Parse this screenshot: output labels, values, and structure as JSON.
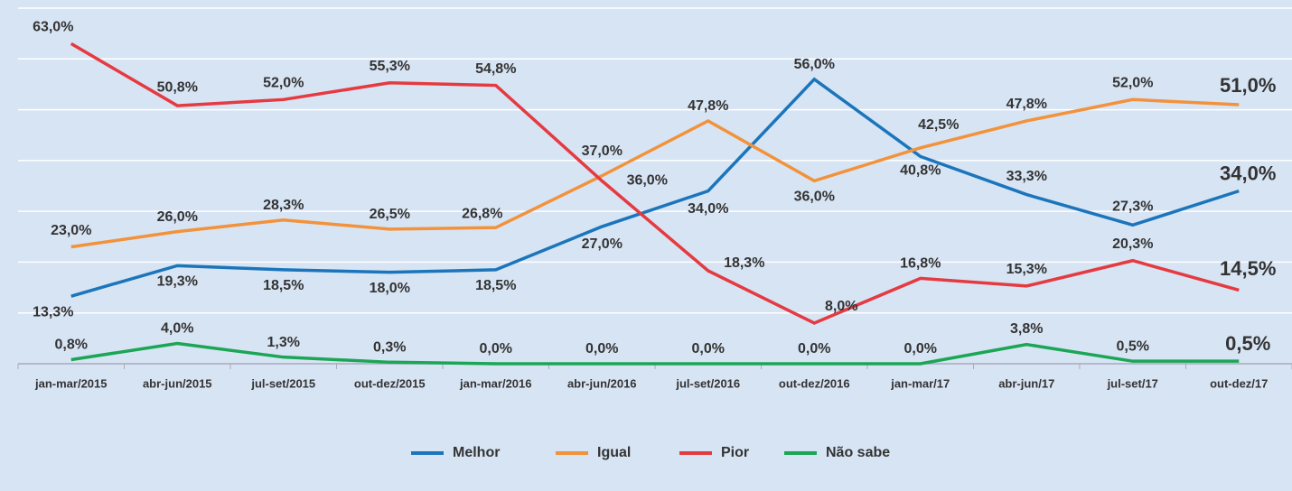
{
  "chart_data": {
    "type": "line",
    "categories": [
      "jan-mar/2015",
      "abr-jun/2015",
      "jul-set/2015",
      "out-dez/2015",
      "jan-mar/2016",
      "abr-jun/2016",
      "jul-set/2016",
      "out-dez/2016",
      "jan-mar/17",
      "abr-jun/17",
      "jul-set/17",
      "out-dez/17"
    ],
    "series": [
      {
        "name": "Melhor",
        "color": "#1b75bb",
        "values": [
          13.3,
          19.3,
          18.5,
          18.0,
          18.5,
          27.0,
          34.0,
          56.0,
          40.8,
          33.3,
          27.3,
          34.0
        ],
        "value_labels": [
          "13,3%",
          "19,3%",
          "18,5%",
          "18,0%",
          "18,5%",
          "27,0%",
          "34,0%",
          "56,0%",
          "40,8%",
          "33,3%",
          "27,3%",
          "34,0%"
        ]
      },
      {
        "name": "Igual",
        "color": "#f2923b",
        "values": [
          23.0,
          26.0,
          28.3,
          26.5,
          26.8,
          37.0,
          47.8,
          36.0,
          42.5,
          47.8,
          52.0,
          51.0
        ],
        "value_labels": [
          "23,0%",
          "26,0%",
          "28,3%",
          "26,5%",
          "26,8%",
          "37,0%",
          "47,8%",
          "36,0%",
          "42,5%",
          "47,8%",
          "52,0%",
          "51,0%"
        ]
      },
      {
        "name": "Pior",
        "color": "#e53a40",
        "values": [
          63.0,
          50.8,
          52.0,
          55.3,
          54.8,
          36.0,
          18.3,
          8.0,
          16.8,
          15.3,
          20.3,
          14.5
        ],
        "value_labels": [
          "63,0%",
          "50,8%",
          "52,0%",
          "55,3%",
          "54,8%",
          "36,0%",
          "18,3%",
          "8,0%",
          "16,8%",
          "15,3%",
          "20,3%",
          "14,5%"
        ]
      },
      {
        "name": "Não sabe",
        "color": "#1ba655",
        "values": [
          0.8,
          4.0,
          1.3,
          0.3,
          0.0,
          0.0,
          0.0,
          0.0,
          0.0,
          3.8,
          0.5,
          0.5
        ],
        "value_labels": [
          "0,8%",
          "4,0%",
          "1,3%",
          "0,3%",
          "0,0%",
          "0,0%",
          "0,0%",
          "0,0%",
          "0,0%",
          "3,8%",
          "0,5%",
          "0,5%"
        ]
      }
    ],
    "ylim": [
      0,
      70
    ],
    "yticks": [
      0,
      10,
      20,
      30,
      40,
      50,
      60,
      70
    ],
    "grid": true,
    "legend": "bottom"
  }
}
